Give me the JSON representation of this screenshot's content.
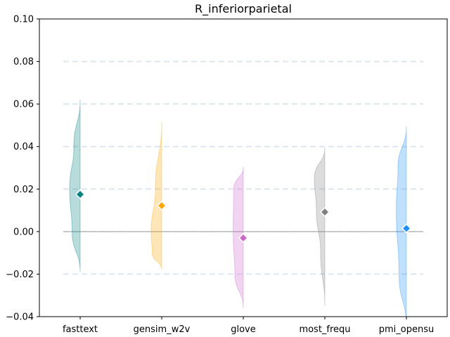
{
  "chart_data": {
    "type": "violin",
    "title": "R_inferiorparietal",
    "xlabel": "",
    "ylabel": "",
    "ylim": [
      -0.04,
      0.1
    ],
    "yticks": [
      -0.04,
      -0.02,
      0.0,
      0.02,
      0.04,
      0.06,
      0.08,
      0.1
    ],
    "ytick_labels": [
      "−0.04",
      "−0.02",
      "0.00",
      "0.02",
      "0.04",
      "0.06",
      "0.08",
      "0.10"
    ],
    "grid": "horizontal dashed",
    "reference_line": 0.0,
    "categories": [
      "fasttext",
      "gensim_w2v",
      "glove",
      "most_frequ",
      "pmi_opensu"
    ],
    "series": [
      {
        "category": "fasttext",
        "color": "#008080",
        "mean": 0.0175,
        "min": -0.019,
        "max": 0.062,
        "half_width": [
          [
            -0.019,
            0.0
          ],
          [
            0.0,
            0.38
          ],
          [
            0.02,
            0.5
          ],
          [
            0.04,
            0.3
          ],
          [
            0.062,
            0.0
          ]
        ]
      },
      {
        "category": "gensim_w2v",
        "color": "#FFA500",
        "mean": 0.0122,
        "min": -0.018,
        "max": 0.0515,
        "half_width": [
          [
            -0.018,
            0.0
          ],
          [
            -0.01,
            0.45
          ],
          [
            0.0,
            0.5
          ],
          [
            0.02,
            0.3
          ],
          [
            0.0515,
            0.0
          ]
        ]
      },
      {
        "category": "glove",
        "color": "#CC66CC",
        "mean": -0.003,
        "min": -0.036,
        "max": 0.0305,
        "half_width": [
          [
            -0.036,
            0.0
          ],
          [
            -0.02,
            0.4
          ],
          [
            0.0,
            0.48
          ],
          [
            0.02,
            0.45
          ],
          [
            0.0305,
            0.0
          ]
        ]
      },
      {
        "category": "most_frequ",
        "color": "#808080",
        "mean": 0.0092,
        "min": -0.035,
        "max": 0.0395,
        "half_width": [
          [
            -0.035,
            0.0
          ],
          [
            -0.01,
            0.2
          ],
          [
            0.01,
            0.4
          ],
          [
            0.025,
            0.5
          ],
          [
            0.0395,
            0.0
          ]
        ]
      },
      {
        "category": "pmi_opensu",
        "color": "#1E90FF",
        "mean": 0.0015,
        "min": -0.045,
        "max": 0.0495,
        "half_width": [
          [
            -0.045,
            0.0
          ],
          [
            -0.02,
            0.35
          ],
          [
            0.01,
            0.48
          ],
          [
            0.03,
            0.4
          ],
          [
            0.0495,
            0.0
          ]
        ]
      }
    ]
  }
}
